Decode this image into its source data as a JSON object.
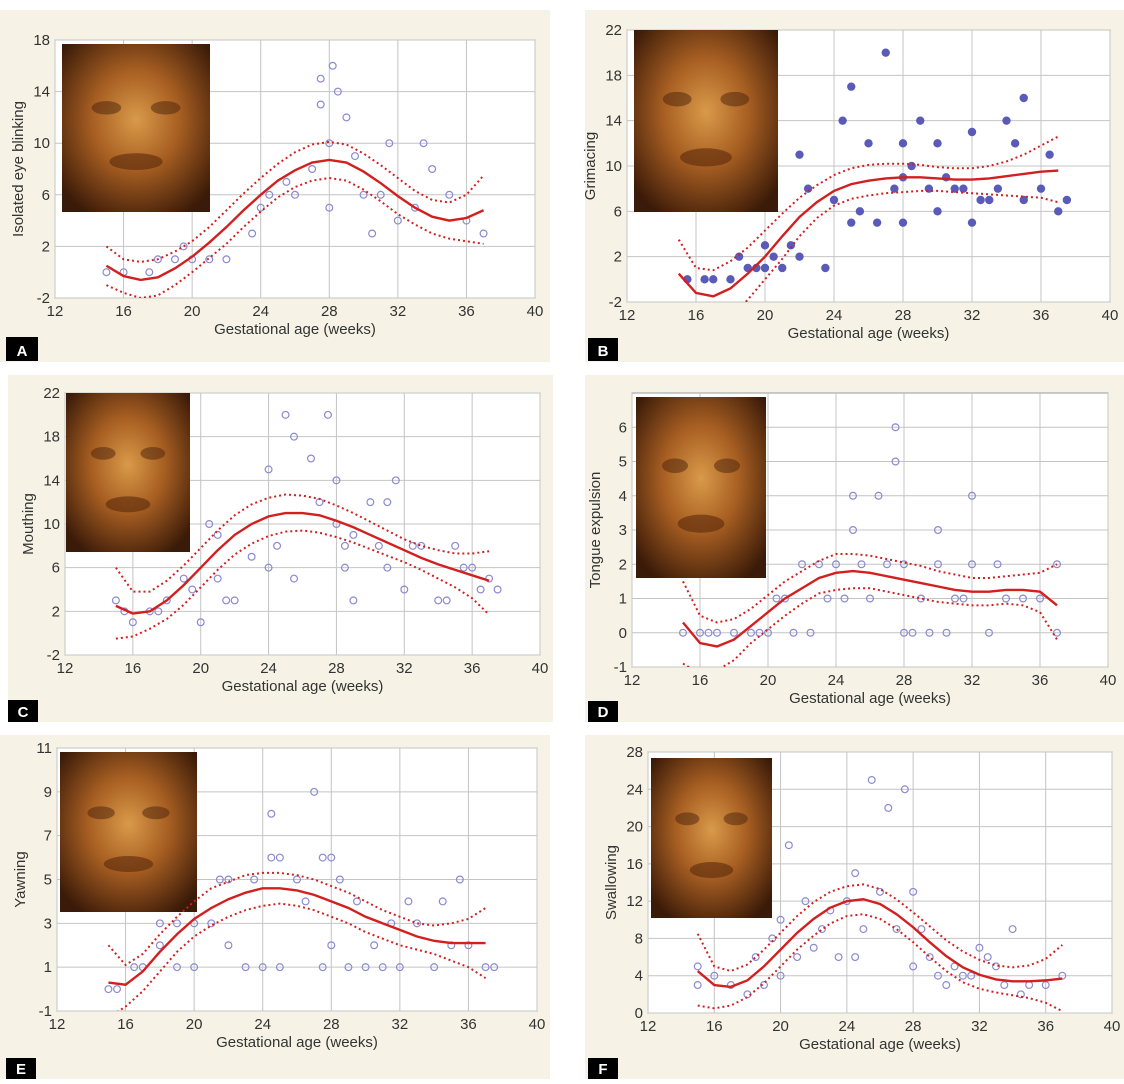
{
  "chart_data": [
    {
      "type": "scatter",
      "panel_label": "A",
      "xlabel": "Gestational age (weeks)",
      "ylabel": "Isolated eye blinking",
      "xlim": [
        12,
        40
      ],
      "ylim": [
        -2,
        18
      ],
      "xticks": [
        12,
        16,
        20,
        24,
        28,
        32,
        36,
        40
      ],
      "yticks": [
        -2,
        2,
        6,
        10,
        14,
        18
      ],
      "grid": true,
      "marker": "hollow",
      "point_color": "#8a8ad0",
      "curve_color": "#d21f1f",
      "points": {
        "x": [
          15,
          16,
          17.5,
          18,
          19,
          19.5,
          20,
          21,
          22,
          23.5,
          24,
          24.5,
          25.5,
          26,
          27,
          27.5,
          27.5,
          28,
          28,
          28.2,
          28.5,
          29,
          29.5,
          30,
          30.5,
          31,
          31.5,
          32,
          33,
          33.5,
          34,
          35,
          36,
          37
        ],
        "y": [
          0,
          0,
          0,
          1,
          1,
          2,
          1,
          1,
          1,
          3,
          5,
          6,
          7,
          6,
          8,
          15,
          13,
          10,
          5,
          16,
          14,
          12,
          9,
          6,
          3,
          6,
          10,
          4,
          5,
          10,
          8,
          6,
          4,
          3
        ]
      },
      "curve_x": [
        15,
        16,
        17,
        18,
        19,
        20,
        21,
        22,
        23,
        24,
        25,
        26,
        27,
        28,
        29,
        30,
        31,
        32,
        33,
        34,
        35,
        36,
        37
      ],
      "fit": [
        0.5,
        -0.3,
        -0.6,
        -0.4,
        0.3,
        1.2,
        2.3,
        3.5,
        4.8,
        6.0,
        7.1,
        7.9,
        8.5,
        8.7,
        8.5,
        7.8,
        6.9,
        5.9,
        5.0,
        4.3,
        4.0,
        4.2,
        4.8
      ],
      "upper": [
        2.0,
        1.0,
        0.8,
        1.0,
        1.6,
        2.4,
        3.5,
        4.8,
        6.1,
        7.3,
        8.4,
        9.3,
        9.9,
        10.1,
        9.9,
        9.2,
        8.3,
        7.3,
        6.3,
        5.6,
        5.4,
        6.0,
        7.5
      ],
      "lower": [
        -1.0,
        -1.6,
        -2.0,
        -1.8,
        -1.0,
        0,
        1.1,
        2.2,
        3.5,
        4.7,
        5.8,
        6.6,
        7.1,
        7.3,
        7.1,
        6.4,
        5.5,
        4.5,
        3.7,
        3.0,
        2.6,
        2.4,
        2.2
      ]
    },
    {
      "type": "scatter",
      "panel_label": "B",
      "xlabel": "Gestational age (weeks)",
      "ylabel": "Grimacing",
      "xlim": [
        12,
        40
      ],
      "ylim": [
        -2,
        22
      ],
      "xticks": [
        12,
        16,
        20,
        24,
        28,
        32,
        36,
        40
      ],
      "yticks": [
        -2,
        2,
        6,
        10,
        14,
        18,
        22
      ],
      "grid": true,
      "marker": "filled",
      "point_color": "#5a5ab8",
      "curve_color": "#d21f1f",
      "points": {
        "x": [
          15.5,
          16.5,
          17,
          18,
          18.5,
          19,
          19.5,
          20,
          20,
          20.5,
          21,
          21.5,
          22,
          22,
          22.5,
          23.5,
          24,
          24.5,
          25,
          25,
          25.5,
          26,
          26.5,
          27,
          27.5,
          28,
          28,
          28,
          28.5,
          29,
          29.5,
          30,
          30,
          30.5,
          31,
          31.5,
          32,
          32,
          32.5,
          33,
          33.5,
          34,
          34.5,
          35,
          35,
          36,
          36.5,
          37,
          37.5
        ],
        "y": [
          0,
          0,
          0,
          0,
          2,
          1,
          1,
          1,
          3,
          2,
          1,
          3,
          2,
          11,
          8,
          1,
          7,
          14,
          5,
          17,
          6,
          12,
          5,
          20,
          8,
          12,
          9,
          5,
          10,
          14,
          8,
          12,
          6,
          9,
          8,
          8,
          13,
          5,
          7,
          7,
          8,
          14,
          12,
          16,
          7,
          8,
          11,
          6,
          7
        ]
      },
      "curve_x": [
        15,
        16,
        17,
        18,
        19,
        20,
        21,
        22,
        23,
        24,
        25,
        26,
        27,
        28,
        29,
        30,
        31,
        32,
        33,
        34,
        35,
        36,
        37
      ],
      "fit": [
        0.5,
        -1.2,
        -1.5,
        -0.8,
        0.5,
        2,
        3.8,
        5.5,
        6.8,
        7.8,
        8.4,
        8.7,
        8.9,
        9,
        9,
        8.9,
        8.8,
        8.8,
        8.9,
        9.1,
        9.3,
        9.5,
        9.6
      ],
      "upper": [
        3.5,
        1,
        0.8,
        1.6,
        2.8,
        4.3,
        5.8,
        7.2,
        8.3,
        9.2,
        9.8,
        10.1,
        10.2,
        10.2,
        10.1,
        9.9,
        9.8,
        9.8,
        10,
        10.4,
        11,
        11.8,
        12.6
      ],
      "lower": [
        -2.5,
        -3.5,
        -4,
        -3.5,
        -1.8,
        0,
        1.8,
        3.8,
        5.4,
        6.5,
        7.1,
        7.4,
        7.6,
        7.7,
        7.8,
        7.8,
        7.7,
        7.6,
        7.5,
        7.4,
        7.3,
        7.2,
        6.8
      ]
    },
    {
      "type": "scatter",
      "panel_label": "C",
      "xlabel": "Gestational age (weeks)",
      "ylabel": "Mouthing",
      "xlim": [
        12,
        40
      ],
      "ylim": [
        -2,
        22
      ],
      "xticks": [
        12,
        16,
        20,
        24,
        28,
        32,
        36,
        40
      ],
      "yticks": [
        -2,
        2,
        6,
        10,
        14,
        18,
        22
      ],
      "grid": true,
      "marker": "hollow",
      "point_color": "#8a8ad0",
      "curve_color": "#d21f1f",
      "points": {
        "x": [
          15,
          15.5,
          16,
          17,
          17.5,
          18,
          19,
          19.5,
          20,
          20.5,
          21,
          21,
          21.5,
          22,
          23,
          24,
          24,
          24.5,
          25,
          25.5,
          25.5,
          26.5,
          27,
          27.5,
          28,
          28,
          28.5,
          28.5,
          29,
          29,
          30,
          30.5,
          31,
          31,
          31.5,
          32,
          32.5,
          33,
          34,
          34.5,
          35,
          35.5,
          36,
          36.5,
          37,
          37.5
        ],
        "y": [
          3,
          2,
          1,
          2,
          2,
          3,
          5,
          4,
          1,
          10,
          5,
          9,
          3,
          3,
          7,
          6,
          15,
          8,
          20,
          18,
          5,
          16,
          12,
          20,
          10,
          14,
          8,
          6,
          3,
          9,
          12,
          8,
          6,
          12,
          14,
          4,
          8,
          8,
          3,
          3,
          8,
          6,
          6,
          4,
          5,
          4
        ]
      },
      "curve_x": [
        15,
        16,
        17,
        18,
        19,
        20,
        21,
        22,
        23,
        24,
        25,
        26,
        27,
        28,
        29,
        30,
        31,
        32,
        33,
        34,
        35,
        36,
        37
      ],
      "fit": [
        2.5,
        1.8,
        2,
        3,
        4.4,
        6,
        7.6,
        9,
        10,
        10.7,
        11,
        11,
        10.8,
        10.3,
        9.7,
        9,
        8.3,
        7.6,
        6.9,
        6.3,
        5.8,
        5.3,
        4.8
      ],
      "upper": [
        6,
        3.8,
        3.8,
        4.8,
        6.2,
        7.8,
        9.4,
        10.8,
        11.8,
        12.4,
        12.7,
        12.6,
        12.3,
        11.7,
        11,
        10.2,
        9.4,
        8.6,
        8,
        7.6,
        7.3,
        7.3,
        7.5
      ],
      "lower": [
        -0.5,
        -0.3,
        0.4,
        1.3,
        2.6,
        4.2,
        5.8,
        7.2,
        8.2,
        8.9,
        9.3,
        9.4,
        9.2,
        8.8,
        8.3,
        7.7,
        7.1,
        6.5,
        5.8,
        5,
        4.2,
        3.2,
        1.7
      ]
    },
    {
      "type": "scatter",
      "panel_label": "D",
      "xlabel": "Gestational age (weeks)",
      "ylabel": "Tongue expulsion",
      "xlim": [
        12,
        40
      ],
      "ylim": [
        -1,
        7
      ],
      "xticks": [
        12,
        16,
        20,
        24,
        28,
        32,
        36,
        40
      ],
      "yticks": [
        -1,
        0,
        1,
        2,
        3,
        4,
        5,
        6
      ],
      "grid": true,
      "marker": "hollow",
      "point_color": "#8a8ad0",
      "curve_color": "#d21f1f",
      "points": {
        "x": [
          15,
          16,
          16.5,
          17,
          18,
          19,
          19.5,
          20,
          20.5,
          21,
          21.5,
          22,
          22.5,
          23,
          23.5,
          24,
          24.5,
          25,
          25,
          25.5,
          26,
          26.5,
          27,
          27.5,
          27.5,
          28,
          28,
          28.5,
          29,
          29.5,
          30,
          30,
          30.5,
          31,
          31.5,
          32,
          32,
          33,
          33.5,
          34,
          35,
          36,
          37,
          37
        ],
        "y": [
          0,
          0,
          0,
          0,
          0,
          0,
          0,
          0,
          1,
          1,
          0,
          2,
          0,
          2,
          1,
          2,
          1,
          4,
          3,
          2,
          1,
          4,
          2,
          6,
          5,
          0,
          2,
          0,
          1,
          0,
          3,
          2,
          0,
          1,
          1,
          4,
          2,
          0,
          2,
          1,
          1,
          1,
          2,
          0
        ]
      },
      "curve_x": [
        15,
        16,
        17,
        18,
        19,
        20,
        21,
        22,
        23,
        24,
        25,
        26,
        27,
        28,
        29,
        30,
        31,
        32,
        33,
        34,
        35,
        36,
        37
      ],
      "fit": [
        0.3,
        -0.3,
        -0.4,
        -0.2,
        0.2,
        0.6,
        1,
        1.3,
        1.6,
        1.75,
        1.8,
        1.75,
        1.65,
        1.55,
        1.45,
        1.35,
        1.25,
        1.2,
        1.2,
        1.25,
        1.25,
        1.2,
        0.8
      ],
      "upper": [
        1.5,
        0.5,
        0.3,
        0.4,
        0.7,
        1.1,
        1.5,
        1.8,
        2.1,
        2.3,
        2.3,
        2.25,
        2.15,
        2.05,
        1.95,
        1.8,
        1.7,
        1.6,
        1.6,
        1.65,
        1.7,
        1.75,
        2
      ],
      "lower": [
        -0.9,
        -1.2,
        -1.1,
        -0.8,
        -0.3,
        0.1,
        0.5,
        0.85,
        1.15,
        1.25,
        1.3,
        1.3,
        1.2,
        1.1,
        1,
        0.9,
        0.85,
        0.8,
        0.8,
        0.85,
        0.8,
        0.6,
        -0.2
      ]
    },
    {
      "type": "scatter",
      "panel_label": "E",
      "xlabel": "Gestational age (weeks)",
      "ylabel": "Yawning",
      "xlim": [
        12,
        40
      ],
      "ylim": [
        -1,
        11
      ],
      "xticks": [
        12,
        16,
        20,
        24,
        28,
        32,
        36,
        40
      ],
      "yticks": [
        -1,
        1,
        3,
        5,
        7,
        9,
        11
      ],
      "grid": true,
      "marker": "hollow",
      "point_color": "#8a8ad0",
      "curve_color": "#d21f1f",
      "points": {
        "x": [
          15,
          15.5,
          16.5,
          17,
          18,
          18,
          19,
          19,
          20,
          20,
          21,
          21.5,
          22,
          22,
          23,
          23.5,
          24,
          24.5,
          24.5,
          25,
          25,
          26,
          26.5,
          27,
          27.5,
          27.5,
          28,
          28,
          28.5,
          29,
          29.5,
          30,
          30.5,
          31,
          31.5,
          32,
          32.5,
          33,
          34,
          34.5,
          35,
          35.5,
          36,
          37,
          37.5
        ],
        "y": [
          0,
          0,
          1,
          1,
          2,
          3,
          1,
          3,
          1,
          3,
          3,
          5,
          2,
          5,
          1,
          5,
          1,
          6,
          8,
          6,
          1,
          5,
          4,
          9,
          6,
          1,
          6,
          2,
          5,
          1,
          4,
          1,
          2,
          1,
          3,
          1,
          4,
          3,
          1,
          4,
          2,
          5,
          2,
          1,
          1
        ]
      },
      "curve_x": [
        15,
        16,
        17,
        18,
        19,
        20,
        21,
        22,
        23,
        24,
        25,
        26,
        27,
        28,
        29,
        30,
        31,
        32,
        33,
        34,
        35,
        36,
        37
      ],
      "fit": [
        0.3,
        0.2,
        0.8,
        1.7,
        2.5,
        3.2,
        3.7,
        4.1,
        4.4,
        4.6,
        4.6,
        4.5,
        4.3,
        4,
        3.7,
        3.3,
        3,
        2.7,
        2.4,
        2.2,
        2.1,
        2.1,
        2.1
      ],
      "upper": [
        2,
        1.1,
        1.6,
        2.5,
        3.3,
        4,
        4.6,
        4.9,
        5.2,
        5.3,
        5.3,
        5.2,
        5,
        4.7,
        4.4,
        4,
        3.6,
        3.3,
        3,
        2.9,
        3,
        3.2,
        3.7
      ],
      "lower": [
        -1.3,
        -0.8,
        -0.1,
        0.8,
        1.7,
        2.4,
        2.9,
        3.3,
        3.6,
        3.8,
        3.9,
        3.8,
        3.6,
        3.3,
        3,
        2.6,
        2.3,
        2.0,
        1.8,
        1.6,
        1.3,
        1,
        0.5
      ]
    },
    {
      "type": "scatter",
      "panel_label": "F",
      "xlabel": "Gestational age (weeks)",
      "ylabel": "Swallowing",
      "xlim": [
        12,
        40
      ],
      "ylim": [
        0,
        28
      ],
      "xticks": [
        12,
        16,
        20,
        24,
        28,
        32,
        36,
        40
      ],
      "yticks": [
        0,
        4,
        8,
        12,
        16,
        20,
        24,
        28
      ],
      "grid": true,
      "marker": "hollow",
      "point_color": "#8a8ad0",
      "curve_color": "#d21f1f",
      "points": {
        "x": [
          15,
          15,
          16,
          17,
          18,
          18.5,
          19,
          19.5,
          20,
          20,
          20.5,
          21,
          21.5,
          22,
          22.5,
          23,
          23.5,
          24,
          24.5,
          24.5,
          25,
          25.5,
          26,
          26.5,
          27,
          27.5,
          28,
          28,
          28.5,
          29,
          29.5,
          30,
          30.5,
          31,
          31.5,
          32,
          32.5,
          33,
          33.5,
          34,
          34.5,
          35,
          36,
          37
        ],
        "y": [
          5,
          3,
          4,
          3,
          2,
          6,
          3,
          8,
          4,
          10,
          18,
          6,
          12,
          7,
          9,
          11,
          6,
          12,
          15,
          6,
          9,
          25,
          13,
          22,
          9,
          24,
          13,
          5,
          9,
          6,
          4,
          3,
          5,
          4,
          4,
          7,
          6,
          5,
          3,
          9,
          2,
          3,
          3,
          4
        ]
      },
      "curve_x": [
        15,
        16,
        17,
        18,
        19,
        20,
        21,
        22,
        23,
        24,
        25,
        26,
        27,
        28,
        29,
        30,
        31,
        32,
        33,
        34,
        35,
        36,
        37
      ],
      "fit": [
        4.5,
        3,
        2.8,
        3.5,
        5,
        6.8,
        8.6,
        10.1,
        11.3,
        12,
        12.2,
        11.7,
        10.6,
        9.2,
        7.6,
        6.1,
        4.9,
        4.1,
        3.6,
        3.4,
        3.4,
        3.5,
        3.7
      ],
      "upper": [
        8.5,
        5,
        4.5,
        5.2,
        6.8,
        8.6,
        10.4,
        11.9,
        13,
        13.6,
        13.8,
        13.3,
        12.2,
        10.8,
        9.3,
        7.8,
        6.6,
        5.7,
        5.1,
        4.9,
        5.1,
        5.8,
        7.3
      ],
      "lower": [
        0.8,
        0.5,
        0.8,
        1.7,
        3.2,
        5,
        6.8,
        8.3,
        9.6,
        10.4,
        10.6,
        10.1,
        9,
        7.6,
        6,
        4.5,
        3.3,
        2.6,
        2.2,
        1.9,
        1.6,
        1.1,
        0.2
      ]
    }
  ]
}
